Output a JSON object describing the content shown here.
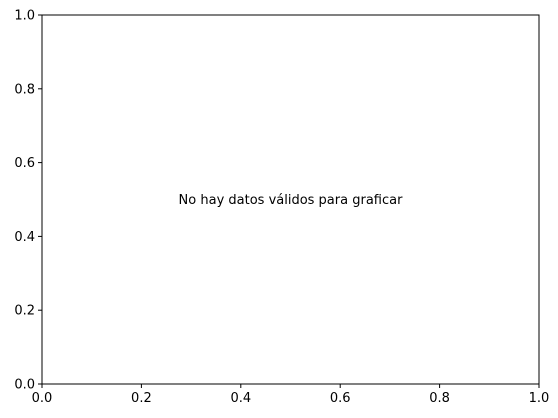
{
  "chart_data": {
    "type": "scatter",
    "title": "",
    "xlabel": "",
    "ylabel": "",
    "xlim": [
      0,
      1
    ],
    "ylim": [
      0,
      1
    ],
    "x_ticks": [
      "0.0",
      "0.2",
      "0.4",
      "0.6",
      "0.8",
      "1.0"
    ],
    "y_ticks": [
      "0.0",
      "0.2",
      "0.4",
      "0.6",
      "0.8",
      "1.0"
    ],
    "series": [],
    "grid": false,
    "annotations": [
      {
        "text": "No hay datos válidos para graficar",
        "x": 0.5,
        "y": 0.5
      }
    ]
  },
  "colors": {
    "axes": "#000000",
    "background": "#ffffff"
  }
}
